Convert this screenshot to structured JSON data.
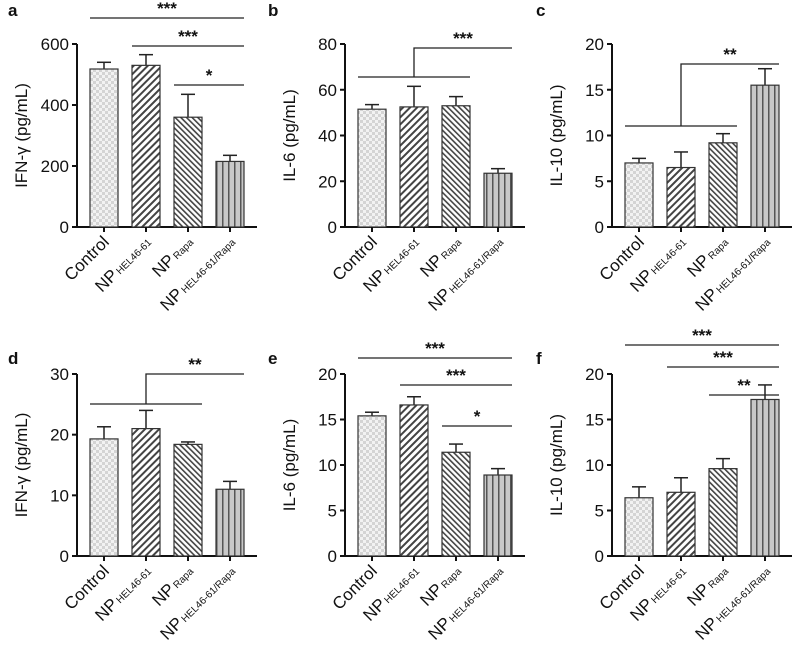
{
  "chart_data": [
    {
      "panel": "a",
      "type": "bar",
      "ylabel": "IFN-γ (pg/mL)",
      "ylim": [
        0,
        600
      ],
      "yticks": [
        0,
        200,
        400,
        600
      ],
      "categories": [
        {
          "main": "Control",
          "sub": ""
        },
        {
          "main": "NP",
          "sub": "HEL46-61"
        },
        {
          "main": "NP",
          "sub": "Rapa"
        },
        {
          "main": "NP",
          "sub": "HEL46-61/Rapa"
        }
      ],
      "values": [
        518,
        530,
        360,
        215
      ],
      "errors": [
        22,
        35,
        75,
        20
      ],
      "significance": [
        {
          "from": 0,
          "to": 3,
          "label": "***"
        },
        {
          "from": 1,
          "to": 3,
          "label": "***"
        },
        {
          "from": 2,
          "to": 3,
          "label": "*"
        }
      ]
    },
    {
      "panel": "b",
      "type": "bar",
      "ylabel": "IL-6 (pg/mL)",
      "ylim": [
        0,
        80
      ],
      "yticks": [
        0,
        20,
        40,
        60,
        80
      ],
      "categories": [
        {
          "main": "Control",
          "sub": ""
        },
        {
          "main": "NP",
          "sub": "HEL46-61"
        },
        {
          "main": "NP",
          "sub": "Rapa"
        },
        {
          "main": "NP",
          "sub": "HEL46-61/Rapa"
        }
      ],
      "values": [
        51.5,
        52.5,
        53,
        23.5
      ],
      "errors": [
        2,
        9,
        4,
        2
      ],
      "significance": [
        {
          "group": [
            0,
            2
          ],
          "to": 3,
          "label": "***"
        }
      ]
    },
    {
      "panel": "c",
      "type": "bar",
      "ylabel": "IL-10 (pg/mL)",
      "ylim": [
        0,
        20
      ],
      "yticks": [
        0,
        5,
        10,
        15,
        20
      ],
      "categories": [
        {
          "main": "Control",
          "sub": ""
        },
        {
          "main": "NP",
          "sub": "HEL46-61"
        },
        {
          "main": "NP",
          "sub": "Rapa"
        },
        {
          "main": "NP",
          "sub": "HEL46-61/Rapa"
        }
      ],
      "values": [
        7,
        6.5,
        9.2,
        15.5
      ],
      "errors": [
        0.5,
        1.7,
        1,
        1.8
      ],
      "significance": [
        {
          "group": [
            0,
            2
          ],
          "to": 3,
          "label": "**"
        }
      ]
    },
    {
      "panel": "d",
      "type": "bar",
      "ylabel": "IFN-γ (pg/mL)",
      "ylim": [
        0,
        30
      ],
      "yticks": [
        0,
        10,
        20,
        30
      ],
      "categories": [
        {
          "main": "Control",
          "sub": ""
        },
        {
          "main": "NP",
          "sub": "HEL46-61"
        },
        {
          "main": "NP",
          "sub": "Rapa"
        },
        {
          "main": "NP",
          "sub": "HEL46-61/Rapa"
        }
      ],
      "values": [
        19.3,
        21,
        18.4,
        11
      ],
      "errors": [
        2,
        3,
        0.4,
        1.3
      ],
      "significance": [
        {
          "group": [
            0,
            2
          ],
          "to": 3,
          "label": "**"
        }
      ]
    },
    {
      "panel": "e",
      "type": "bar",
      "ylabel": "IL-6 (pg/mL)",
      "ylim": [
        0,
        20
      ],
      "yticks": [
        0,
        5,
        10,
        15,
        20
      ],
      "categories": [
        {
          "main": "Control",
          "sub": ""
        },
        {
          "main": "NP",
          "sub": "HEL46-61"
        },
        {
          "main": "NP",
          "sub": "Rapa"
        },
        {
          "main": "NP",
          "sub": "HEL46-61/Rapa"
        }
      ],
      "values": [
        15.4,
        16.6,
        11.4,
        8.9
      ],
      "errors": [
        0.4,
        0.9,
        0.9,
        0.7
      ],
      "significance": [
        {
          "from": 0,
          "to": 3,
          "label": "***"
        },
        {
          "from": 1,
          "to": 3,
          "label": "***"
        },
        {
          "from": 2,
          "to": 3,
          "label": "*"
        }
      ]
    },
    {
      "panel": "f",
      "type": "bar",
      "ylabel": "IL-10 (pg/mL)",
      "ylim": [
        0,
        20
      ],
      "yticks": [
        0,
        5,
        10,
        15,
        20
      ],
      "categories": [
        {
          "main": "Control",
          "sub": ""
        },
        {
          "main": "NP",
          "sub": "HEL46-61"
        },
        {
          "main": "NP",
          "sub": "Rapa"
        },
        {
          "main": "NP",
          "sub": "HEL46-61/Rapa"
        }
      ],
      "values": [
        6.4,
        7,
        9.6,
        17.2
      ],
      "errors": [
        1.2,
        1.6,
        1.1,
        1.6
      ],
      "significance": [
        {
          "from": 0,
          "to": 3,
          "label": "***"
        },
        {
          "from": 1,
          "to": 3,
          "label": "***"
        },
        {
          "from": 2,
          "to": 3,
          "label": "**"
        }
      ]
    }
  ]
}
